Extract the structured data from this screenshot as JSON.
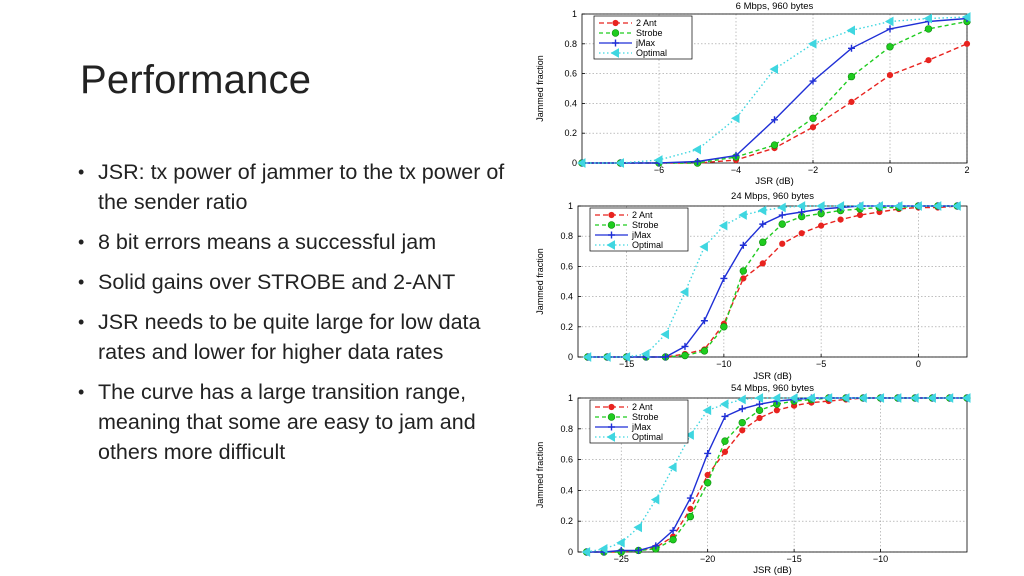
{
  "slide": {
    "title": "Performance",
    "bullets": [
      "JSR: tx power of jammer to the tx power of the sender ratio",
      "8 bit errors means a successful jam",
      "Solid gains over STROBE and 2-ANT",
      "JSR needs to be quite large for low data rates and lower for higher data rates",
      "The curve has a large transition range, meaning that some are easy to jam and others more difficult"
    ]
  },
  "colors": {
    "2 Ant": "#e8231f",
    "Strobe": "#1fcc1f",
    "jMax": "#1f2fd6",
    "Optimal": "#3fd6e0"
  },
  "chart_data": [
    {
      "type": "line",
      "title": "6 Mbps, 960 bytes",
      "xlabel": "JSR (dB)",
      "ylabel": "Jammed fraction",
      "xlim": [
        -8,
        2
      ],
      "ylim": [
        0,
        1
      ],
      "xticks": [
        -6,
        -4,
        -2,
        0,
        2
      ],
      "xtick_labels": [
        "−6",
        "−4",
        "−2",
        "0",
        "2"
      ],
      "yticks": [
        0,
        0.2,
        0.4,
        0.6,
        0.8,
        1
      ],
      "ytick_labels": [
        "0",
        "0.2",
        "0.4",
        "0.6",
        "0.8",
        "1"
      ],
      "grid": true,
      "legend": "top-left",
      "series": [
        {
          "name": "2 Ant",
          "x": [
            -8,
            -7,
            -6,
            -5,
            -4,
            -3,
            -2,
            -1,
            0,
            1,
            2
          ],
          "y": [
            0,
            0,
            0,
            0,
            0.02,
            0.1,
            0.24,
            0.41,
            0.59,
            0.69,
            0.8
          ]
        },
        {
          "name": "Strobe",
          "x": [
            -8,
            -7,
            -6,
            -5,
            -4,
            -3,
            -2,
            -1,
            0,
            1,
            2
          ],
          "y": [
            0,
            0,
            0,
            0,
            0.04,
            0.12,
            0.3,
            0.58,
            0.78,
            0.9,
            0.95
          ]
        },
        {
          "name": "jMax",
          "x": [
            -8,
            -7,
            -6,
            -5,
            -4,
            -3,
            -2,
            -1,
            0,
            1,
            2
          ],
          "y": [
            0,
            0,
            0,
            0.01,
            0.05,
            0.29,
            0.55,
            0.77,
            0.9,
            0.95,
            0.97
          ]
        },
        {
          "name": "Optimal",
          "x": [
            -8,
            -7,
            -6,
            -5,
            -4,
            -3,
            -2,
            -1,
            0,
            1,
            2
          ],
          "y": [
            0,
            0,
            0.02,
            0.09,
            0.3,
            0.63,
            0.8,
            0.89,
            0.95,
            0.97,
            0.98
          ]
        }
      ]
    },
    {
      "type": "line",
      "title": "24 Mbps, 960 bytes",
      "xlabel": "JSR (dB)",
      "ylabel": "Jammed fraction",
      "xlim": [
        -17.5,
        2.5
      ],
      "ylim": [
        0,
        1
      ],
      "xticks": [
        -15,
        -10,
        -5,
        0
      ],
      "xtick_labels": [
        "−15",
        "−10",
        "−5",
        "0"
      ],
      "yticks": [
        0,
        0.2,
        0.4,
        0.6,
        0.8,
        1
      ],
      "ytick_labels": [
        "0",
        "0.2",
        "0.4",
        "0.6",
        "0.8",
        "1"
      ],
      "grid": true,
      "legend": "top-left",
      "series": [
        {
          "name": "2 Ant",
          "x": [
            -17,
            -16,
            -15,
            -14,
            -13,
            -12,
            -11,
            -10,
            -9,
            -8,
            -7,
            -6,
            -5,
            -4,
            -3,
            -2,
            -1,
            0,
            1,
            2
          ],
          "y": [
            0,
            0,
            0,
            0,
            0,
            0.02,
            0.05,
            0.22,
            0.52,
            0.62,
            0.75,
            0.82,
            0.87,
            0.91,
            0.94,
            0.96,
            0.98,
            0.99,
            0.99,
            1
          ]
        },
        {
          "name": "Strobe",
          "x": [
            -17,
            -16,
            -15,
            -14,
            -13,
            -12,
            -11,
            -10,
            -9,
            -8,
            -7,
            -6,
            -5,
            -4,
            -3,
            -2,
            -1,
            0,
            1,
            2
          ],
          "y": [
            0,
            0,
            0,
            0,
            0,
            0.01,
            0.04,
            0.2,
            0.57,
            0.76,
            0.88,
            0.93,
            0.95,
            0.97,
            0.98,
            0.99,
            0.99,
            1,
            1,
            1
          ]
        },
        {
          "name": "jMax",
          "x": [
            -17,
            -16,
            -15,
            -14,
            -13,
            -12,
            -11,
            -10,
            -9,
            -8,
            -7,
            -6,
            -5,
            -4,
            -3,
            -2,
            -1,
            0,
            1,
            2
          ],
          "y": [
            0,
            0,
            0,
            0,
            0,
            0.07,
            0.24,
            0.52,
            0.74,
            0.88,
            0.94,
            0.96,
            0.98,
            0.99,
            1,
            1,
            1,
            1,
            1,
            1
          ]
        },
        {
          "name": "Optimal",
          "x": [
            -17,
            -16,
            -15,
            -14,
            -13,
            -12,
            -11,
            -10,
            -9,
            -8,
            -7,
            -6,
            -5,
            -4,
            -3,
            -2,
            -1,
            0,
            1,
            2
          ],
          "y": [
            0,
            0,
            0,
            0.02,
            0.15,
            0.43,
            0.73,
            0.87,
            0.94,
            0.97,
            0.99,
            1,
            1,
            1,
            1,
            1,
            1,
            1,
            1,
            1
          ]
        }
      ]
    },
    {
      "type": "line",
      "title": "54 Mbps, 960 bytes",
      "xlabel": "JSR (dB)",
      "ylabel": "Jammed fraction",
      "xlim": [
        -27.5,
        -5
      ],
      "ylim": [
        0,
        1
      ],
      "xticks": [
        -25,
        -20,
        -15,
        -10
      ],
      "xtick_labels": [
        "−25",
        "−20",
        "−15",
        "−10"
      ],
      "yticks": [
        0,
        0.2,
        0.4,
        0.6,
        0.8,
        1
      ],
      "ytick_labels": [
        "0",
        "0.2",
        "0.4",
        "0.6",
        "0.8",
        "1"
      ],
      "grid": true,
      "legend": "top-left",
      "series": [
        {
          "name": "2 Ant",
          "x": [
            -27,
            -26,
            -25,
            -24,
            -23,
            -22,
            -21,
            -20,
            -19,
            -18,
            -17,
            -16,
            -15,
            -14,
            -13,
            -12,
            -11,
            -10,
            -9,
            -8,
            -7,
            -6,
            -5
          ],
          "y": [
            0,
            0,
            0,
            0.01,
            0.03,
            0.1,
            0.28,
            0.5,
            0.65,
            0.79,
            0.87,
            0.92,
            0.95,
            0.97,
            0.98,
            0.99,
            1,
            1,
            1,
            1,
            1,
            1,
            1
          ]
        },
        {
          "name": "Strobe",
          "x": [
            -27,
            -26,
            -25,
            -24,
            -23,
            -22,
            -21,
            -20,
            -19,
            -18,
            -17,
            -16,
            -15,
            -14,
            -13,
            -12,
            -11,
            -10,
            -9,
            -8,
            -7,
            -6,
            -5
          ],
          "y": [
            0,
            0,
            0,
            0.01,
            0.02,
            0.08,
            0.23,
            0.45,
            0.72,
            0.84,
            0.92,
            0.96,
            0.98,
            0.99,
            1,
            1,
            1,
            1,
            1,
            1,
            1,
            1,
            1
          ]
        },
        {
          "name": "jMax",
          "x": [
            -27,
            -26,
            -25,
            -24,
            -23,
            -22,
            -21,
            -20,
            -19,
            -18,
            -17,
            -16,
            -15,
            -14,
            -13,
            -12,
            -11,
            -10,
            -9,
            -8,
            -7,
            -6,
            -5
          ],
          "y": [
            0,
            0,
            0.01,
            0.01,
            0.04,
            0.14,
            0.35,
            0.64,
            0.88,
            0.93,
            0.96,
            0.98,
            0.99,
            1,
            1,
            1,
            1,
            1,
            1,
            1,
            1,
            1,
            1
          ]
        },
        {
          "name": "Optimal",
          "x": [
            -27,
            -26,
            -25,
            -24,
            -23,
            -22,
            -21,
            -20,
            -19,
            -18,
            -17,
            -16,
            -15,
            -14,
            -13,
            -12,
            -11,
            -10,
            -9,
            -8,
            -7,
            -6,
            -5
          ],
          "y": [
            0,
            0.02,
            0.06,
            0.16,
            0.34,
            0.55,
            0.76,
            0.92,
            0.96,
            0.99,
            1,
            1,
            1,
            1,
            1,
            1,
            1,
            1,
            1,
            1,
            1,
            1,
            1
          ]
        }
      ]
    }
  ]
}
